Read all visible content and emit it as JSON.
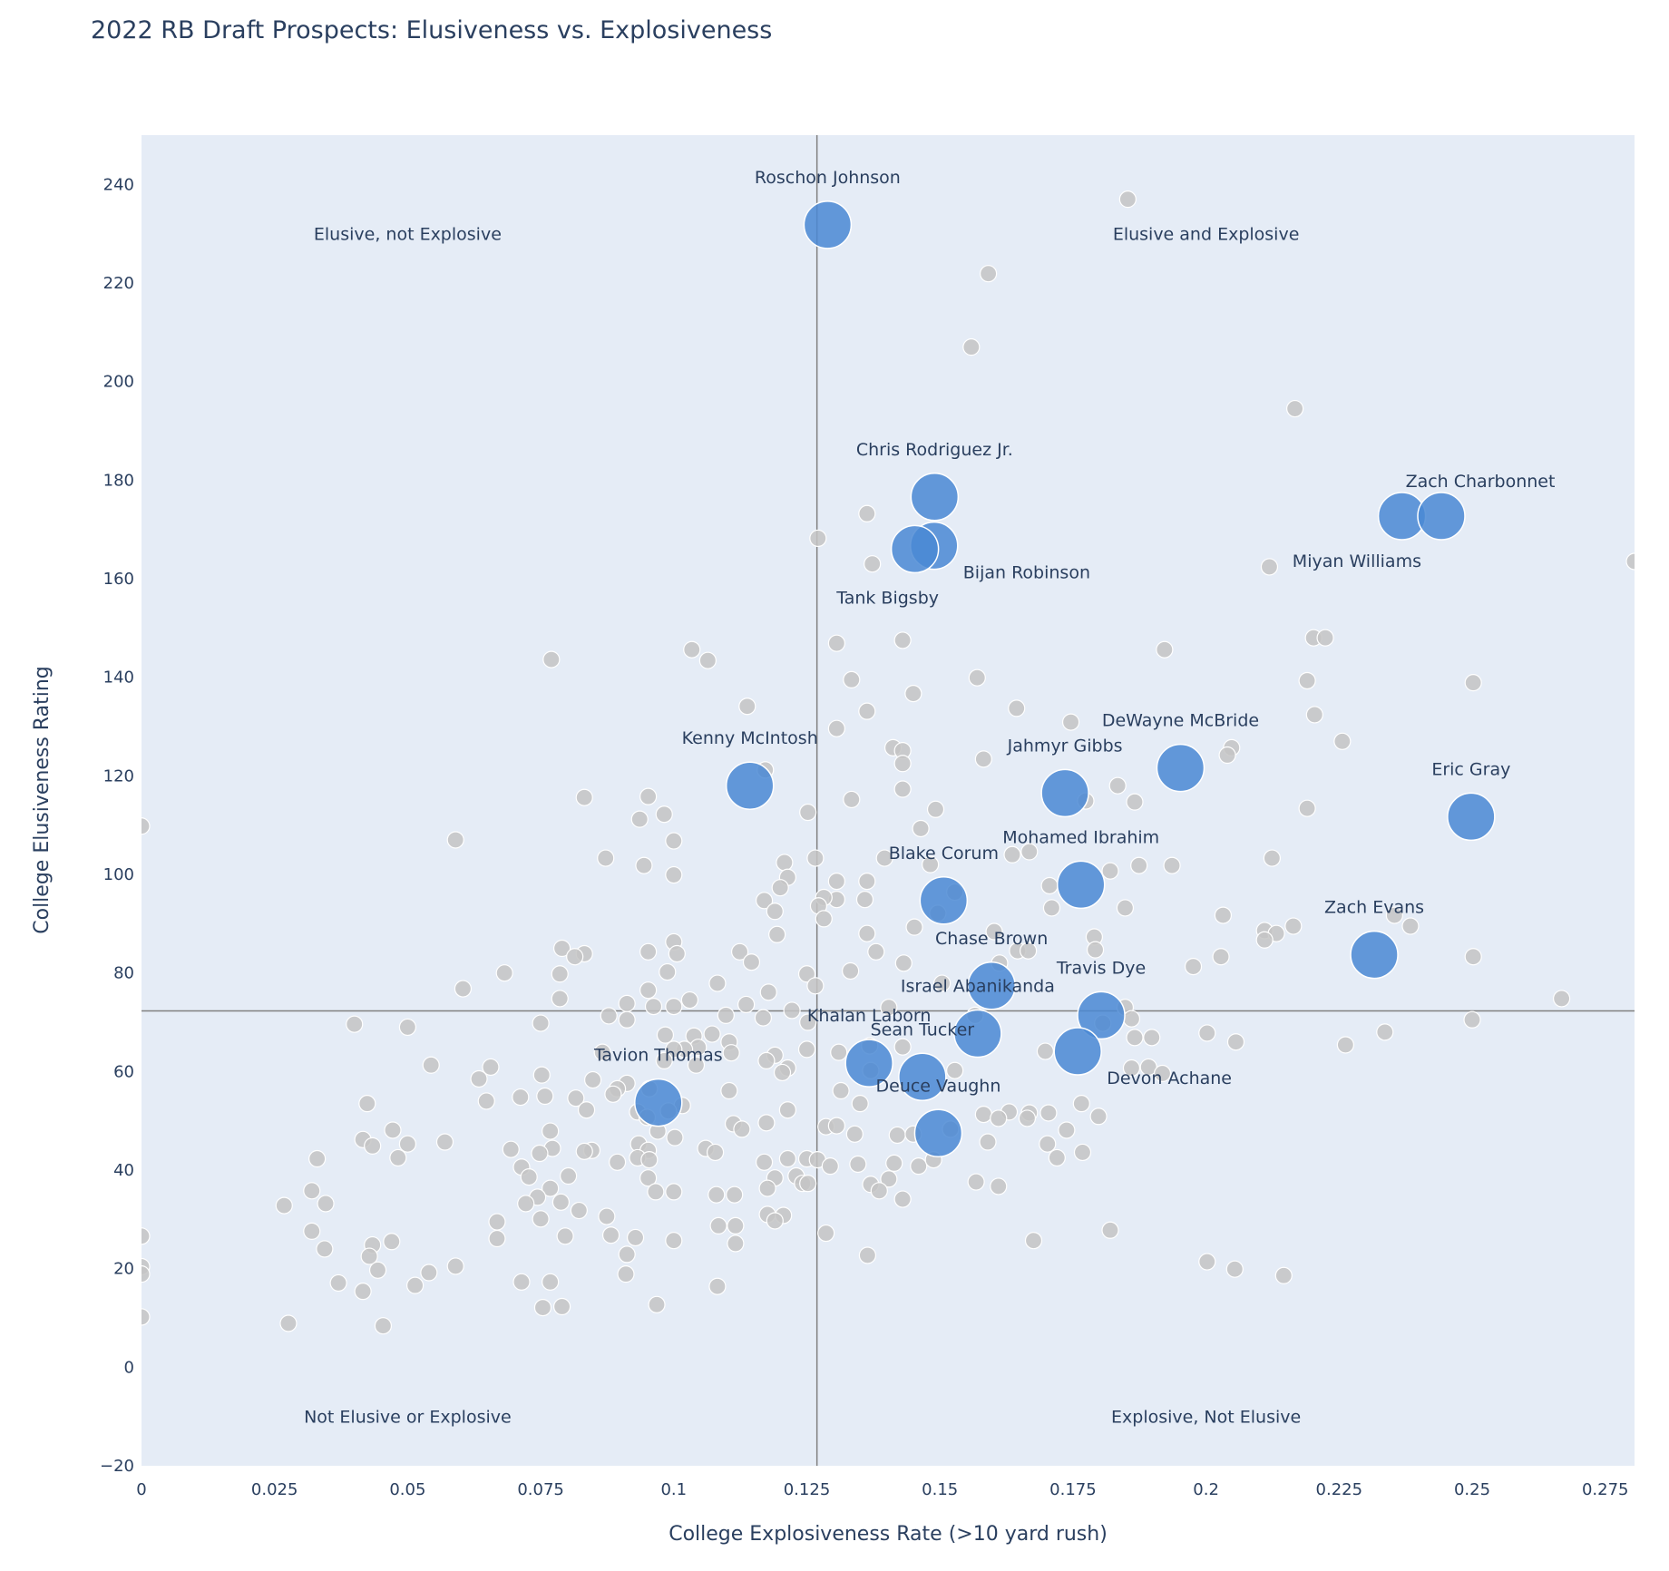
{
  "chart_data": {
    "type": "scatter",
    "title": "2022 RB Draft Prospects: Elusiveness vs. Explosiveness",
    "xlabel": "College Explosiveness Rate (>10 yard rush)",
    "ylabel": "College Elusiveness Rating",
    "xlim": [
      0,
      0.2805
    ],
    "ylim": [
      -20,
      250
    ],
    "grid": false,
    "x_ticks": [
      0,
      0.025,
      0.05,
      0.075,
      0.1,
      0.125,
      0.15,
      0.175,
      0.2,
      0.225,
      0.25,
      0.275
    ],
    "x_tick_labels": [
      "0",
      "0.025",
      "0.05",
      "0.075",
      "0.1",
      "0.125",
      "0.15",
      "0.175",
      "0.2",
      "0.225",
      "0.25",
      "0.275"
    ],
    "y_ticks": [
      -20,
      0,
      20,
      40,
      60,
      80,
      100,
      120,
      140,
      160,
      180,
      200,
      220,
      240
    ],
    "y_tick_labels": [
      "−20",
      "0",
      "20",
      "40",
      "60",
      "80",
      "100",
      "120",
      "140",
      "160",
      "180",
      "200",
      "220",
      "240"
    ],
    "reference_lines": {
      "x": 0.1269,
      "y": 72.3
    },
    "quadrant_labels": [
      {
        "text": "Elusive, not Explosive",
        "x": 0.05,
        "y": 230
      },
      {
        "text": "Elusive and Explosive",
        "x": 0.2,
        "y": 230
      },
      {
        "text": "Not Elusive or Explosive",
        "x": 0.05,
        "y": -10
      },
      {
        "text": "Explosive, Not Elusive",
        "x": 0.2,
        "y": -10
      }
    ],
    "colors": {
      "highlight": "#4a88d4",
      "other": "#c4c4c4",
      "plot_bg": "#e5ecf6",
      "ref_line": "#808080"
    },
    "highlighted": [
      {
        "name": "Roschon Johnson",
        "x": 0.1289,
        "y": 231.8,
        "label_pos": "top center"
      },
      {
        "name": "Chris Rodriguez Jr.",
        "x": 0.149,
        "y": 176.6,
        "label_pos": "top center"
      },
      {
        "name": "Bijan Robinson",
        "x": 0.1489,
        "y": 166.7,
        "label_pos": "bottom right"
      },
      {
        "name": "Tank Bigsby",
        "x": 0.1453,
        "y": 166.0,
        "label_pos": "bottom center"
      },
      {
        "name": "Zach Charbonnet",
        "x": 0.2368,
        "y": 172.7,
        "label_pos": "top right"
      },
      {
        "name": "Miyan Williams",
        "x": 0.2442,
        "y": 172.7,
        "label_pos": "bottom left"
      },
      {
        "name": "Kenny McIntosh",
        "x": 0.1143,
        "y": 118.0,
        "label_pos": "top center"
      },
      {
        "name": "DeWayne McBride",
        "x": 0.1952,
        "y": 121.6,
        "label_pos": "top center"
      },
      {
        "name": "Jahmyr Gibbs",
        "x": 0.1735,
        "y": 116.5,
        "label_pos": "top center"
      },
      {
        "name": "Eric Gray",
        "x": 0.2498,
        "y": 111.7,
        "label_pos": "top center"
      },
      {
        "name": "Mohamed Ibrahim",
        "x": 0.1765,
        "y": 97.9,
        "label_pos": "top center"
      },
      {
        "name": "Blake Corum",
        "x": 0.1507,
        "y": 94.7,
        "label_pos": "top center"
      },
      {
        "name": "Zach Evans",
        "x": 0.2316,
        "y": 83.7,
        "label_pos": "top center"
      },
      {
        "name": "Chase Brown",
        "x": 0.1597,
        "y": 77.4,
        "label_pos": "top center"
      },
      {
        "name": "Travis Dye",
        "x": 0.1803,
        "y": 71.4,
        "label_pos": "top center"
      },
      {
        "name": "Israel Abanikanda",
        "x": 0.1571,
        "y": 67.7,
        "label_pos": "top center"
      },
      {
        "name": "Devon Achane",
        "x": 0.1759,
        "y": 64.1,
        "label_pos": "bottom right"
      },
      {
        "name": "Khalan Laborn",
        "x": 0.1367,
        "y": 61.7,
        "label_pos": "top center"
      },
      {
        "name": "Sean Tucker",
        "x": 0.1467,
        "y": 58.9,
        "label_pos": "top center"
      },
      {
        "name": "Tavion Thomas",
        "x": 0.0971,
        "y": 53.7,
        "label_pos": "top center"
      },
      {
        "name": "Deuce Vaughn",
        "x": 0.1497,
        "y": 47.5,
        "label_pos": "top center"
      }
    ],
    "others": [
      [
        0.1853,
        237.0
      ],
      [
        0.1591,
        221.9
      ],
      [
        0.1559,
        207.0
      ],
      [
        0.2167,
        194.5
      ],
      [
        0.1271,
        168.2
      ],
      [
        0.1363,
        173.2
      ],
      [
        0.1373,
        163.0
      ],
      [
        0.2119,
        162.4
      ],
      [
        0.2805,
        163.5
      ],
      [
        0.1034,
        145.6
      ],
      [
        0.1064,
        143.4
      ],
      [
        0.077,
        143.6
      ],
      [
        0.1306,
        146.9
      ],
      [
        0.143,
        147.5
      ],
      [
        0.1922,
        145.6
      ],
      [
        0.2202,
        148.0
      ],
      [
        0.2224,
        148.0
      ],
      [
        0.2502,
        138.9
      ],
      [
        0.219,
        139.3
      ],
      [
        0.1334,
        139.5
      ],
      [
        0.157,
        139.9
      ],
      [
        0.145,
        136.7
      ],
      [
        0.1138,
        134.1
      ],
      [
        0.1363,
        133.1
      ],
      [
        0.1644,
        133.7
      ],
      [
        0.2204,
        132.4
      ],
      [
        0.1306,
        129.6
      ],
      [
        0.1746,
        130.9
      ],
      [
        0.2256,
        127.0
      ],
      [
        0.2048,
        125.7
      ],
      [
        0.204,
        124.2
      ],
      [
        0.1412,
        125.7
      ],
      [
        0.143,
        125.1
      ],
      [
        0.143,
        122.5
      ],
      [
        0.1172,
        121.2
      ],
      [
        0.1582,
        123.4
      ],
      [
        0.1834,
        118.0
      ],
      [
        0.1866,
        114.7
      ],
      [
        0.1774,
        114.9
      ],
      [
        0.143,
        117.3
      ],
      [
        0.1334,
        115.2
      ],
      [
        0.1492,
        113.2
      ],
      [
        0.0832,
        115.6
      ],
      [
        0.0952,
        115.8
      ],
      [
        0.1252,
        112.6
      ],
      [
        0.0936,
        111.2
      ],
      [
        0.0982,
        112.2
      ],
      [
        0.219,
        113.4
      ],
      [
        0.0,
        109.8
      ],
      [
        0.1464,
        109.3
      ],
      [
        0.059,
        107.0
      ],
      [
        0.1,
        106.8
      ],
      [
        0.1668,
        104.6
      ],
      [
        0.1636,
        104.0
      ],
      [
        0.1266,
        103.3
      ],
      [
        0.0872,
        103.3
      ],
      [
        0.2124,
        103.3
      ],
      [
        0.1936,
        101.8
      ],
      [
        0.1482,
        102.0
      ],
      [
        0.1396,
        103.3
      ],
      [
        0.1208,
        102.4
      ],
      [
        0.182,
        100.7
      ],
      [
        0.1874,
        101.8
      ],
      [
        0.0944,
        101.8
      ],
      [
        0.1,
        99.9
      ],
      [
        0.1214,
        99.4
      ],
      [
        0.1306,
        98.6
      ],
      [
        0.1363,
        98.6
      ],
      [
        0.12,
        97.3
      ],
      [
        0.1706,
        97.7
      ],
      [
        0.1528,
        96.4
      ],
      [
        0.1359,
        94.9
      ],
      [
        0.1306,
        94.9
      ],
      [
        0.1282,
        95.3
      ],
      [
        0.117,
        94.7
      ],
      [
        0.1272,
        93.6
      ],
      [
        0.171,
        93.2
      ],
      [
        0.1848,
        93.2
      ],
      [
        0.119,
        92.5
      ],
      [
        0.1496,
        92.1
      ],
      [
        0.1282,
        91.0
      ],
      [
        0.2032,
        91.7
      ],
      [
        0.1363,
        88.0
      ],
      [
        0.1452,
        89.3
      ],
      [
        0.1602,
        88.4
      ],
      [
        0.2164,
        89.5
      ],
      [
        0.211,
        88.6
      ],
      [
        0.2384,
        89.5
      ],
      [
        0.2132,
        88.0
      ],
      [
        0.1194,
        87.8
      ],
      [
        0.1,
        86.3
      ],
      [
        0.211,
        86.7
      ],
      [
        0.179,
        87.3
      ],
      [
        0.2354,
        91.7
      ],
      [
        0.138,
        84.3
      ],
      [
        0.0952,
        84.3
      ],
      [
        0.1006,
        83.9
      ],
      [
        0.1124,
        84.3
      ],
      [
        0.0832,
        83.9
      ],
      [
        0.079,
        85.0
      ],
      [
        0.0814,
        83.3
      ],
      [
        0.1646,
        84.5
      ],
      [
        0.1666,
        84.5
      ],
      [
        0.1792,
        84.7
      ],
      [
        0.2028,
        83.3
      ],
      [
        0.2502,
        83.3
      ],
      [
        0.1432,
        82.0
      ],
      [
        0.1146,
        82.2
      ],
      [
        0.1612,
        82.0
      ],
      [
        0.1976,
        81.3
      ],
      [
        0.0988,
        80.2
      ],
      [
        0.1332,
        80.4
      ],
      [
        0.125,
        79.8
      ],
      [
        0.0786,
        79.8
      ],
      [
        0.0682,
        80.0
      ],
      [
        0.1082,
        77.9
      ],
      [
        0.1266,
        77.4
      ],
      [
        0.1178,
        76.1
      ],
      [
        0.0952,
        76.5
      ],
      [
        0.0604,
        76.8
      ],
      [
        0.1504,
        77.9
      ],
      [
        0.0786,
        74.8
      ],
      [
        0.2668,
        74.8
      ],
      [
        0.103,
        74.5
      ],
      [
        0.0912,
        73.8
      ],
      [
        0.0962,
        73.2
      ],
      [
        0.1,
        73.2
      ],
      [
        0.1136,
        73.6
      ],
      [
        0.1404,
        73.0
      ],
      [
        0.1222,
        72.4
      ],
      [
        0.1098,
        71.4
      ],
      [
        0.1566,
        71.4
      ],
      [
        0.1848,
        73.0
      ],
      [
        0.186,
        70.7
      ],
      [
        0.0878,
        71.3
      ],
      [
        0.0912,
        70.5
      ],
      [
        0.1168,
        70.9
      ],
      [
        0.075,
        69.8
      ],
      [
        0.04,
        69.6
      ],
      [
        0.05,
        69.0
      ],
      [
        0.25,
        70.5
      ],
      [
        0.1806,
        69.8
      ],
      [
        0.1866,
        66.9
      ],
      [
        0.1252,
        70.0
      ],
      [
        0.1898,
        66.9
      ],
      [
        0.2002,
        67.8
      ],
      [
        0.2336,
        68.0
      ],
      [
        0.2056,
        66.0
      ],
      [
        0.2262,
        65.4
      ],
      [
        0.0984,
        67.4
      ],
      [
        0.1038,
        67.2
      ],
      [
        0.1072,
        67.6
      ],
      [
        0.1104,
        66.0
      ],
      [
        0.1046,
        64.9
      ],
      [
        0.102,
        64.5
      ],
      [
        0.1,
        64.5
      ],
      [
        0.1368,
        65.2
      ],
      [
        0.143,
        65.0
      ],
      [
        0.1698,
        64.1
      ],
      [
        0.1108,
        63.8
      ],
      [
        0.0866,
        63.9
      ],
      [
        0.131,
        63.9
      ],
      [
        0.119,
        63.3
      ],
      [
        0.125,
        64.5
      ],
      [
        0.0982,
        62.2
      ],
      [
        0.1042,
        61.3
      ],
      [
        0.1174,
        62.2
      ],
      [
        0.1214,
        60.7
      ],
      [
        0.1204,
        59.8
      ],
      [
        0.0544,
        61.3
      ],
      [
        0.0656,
        60.9
      ],
      [
        0.186,
        60.7
      ],
      [
        0.1892,
        60.9
      ],
      [
        0.1918,
        59.6
      ],
      [
        0.1528,
        60.2
      ],
      [
        0.137,
        60.2
      ],
      [
        0.0752,
        59.3
      ],
      [
        0.0634,
        58.5
      ],
      [
        0.0848,
        58.3
      ],
      [
        0.0912,
        57.6
      ],
      [
        0.0894,
        56.5
      ],
      [
        0.0954,
        56.5
      ],
      [
        0.0886,
        55.4
      ],
      [
        0.1104,
        56.1
      ],
      [
        0.1314,
        56.1
      ],
      [
        0.0758,
        55.0
      ],
      [
        0.0712,
        54.8
      ],
      [
        0.0816,
        54.6
      ],
      [
        0.0424,
        53.5
      ],
      [
        0.0648,
        54.0
      ],
      [
        0.1016,
        53.1
      ],
      [
        0.135,
        53.5
      ],
      [
        0.1766,
        53.5
      ],
      [
        0.1582,
        51.3
      ],
      [
        0.163,
        51.8
      ],
      [
        0.161,
        50.5
      ],
      [
        0.1668,
        51.6
      ],
      [
        0.1664,
        50.5
      ],
      [
        0.1704,
        51.6
      ],
      [
        0.1798,
        50.9
      ],
      [
        0.0836,
        52.2
      ],
      [
        0.1214,
        52.2
      ],
      [
        0.0932,
        51.8
      ],
      [
        0.095,
        50.7
      ],
      [
        0.099,
        52.0
      ],
      [
        0.097,
        47.9
      ],
      [
        0.1174,
        49.6
      ],
      [
        0.1112,
        49.4
      ],
      [
        0.1128,
        48.3
      ],
      [
        0.1286,
        48.8
      ],
      [
        0.1306,
        49.0
      ],
      [
        0.134,
        47.3
      ],
      [
        0.142,
        47.1
      ],
      [
        0.145,
        47.3
      ],
      [
        0.152,
        48.3
      ],
      [
        0.1738,
        48.1
      ],
      [
        0.159,
        45.7
      ],
      [
        0.1702,
        45.3
      ],
      [
        0.172,
        42.5
      ],
      [
        0.1768,
        43.6
      ],
      [
        0.0472,
        48.1
      ],
      [
        0.0416,
        46.2
      ],
      [
        0.0434,
        44.9
      ],
      [
        0.05,
        45.3
      ],
      [
        0.0482,
        42.5
      ],
      [
        0.057,
        45.7
      ],
      [
        0.0768,
        47.9
      ],
      [
        0.0772,
        44.4
      ],
      [
        0.0748,
        43.4
      ],
      [
        0.0694,
        44.2
      ],
      [
        0.0846,
        44.0
      ],
      [
        0.0832,
        43.8
      ],
      [
        0.0934,
        45.3
      ],
      [
        0.0952,
        44.0
      ],
      [
        0.1002,
        46.6
      ],
      [
        0.106,
        44.4
      ],
      [
        0.1078,
        43.6
      ],
      [
        0.033,
        42.3
      ],
      [
        0.0932,
        42.5
      ],
      [
        0.0894,
        41.6
      ],
      [
        0.0954,
        42.1
      ],
      [
        0.117,
        41.6
      ],
      [
        0.1214,
        42.3
      ],
      [
        0.125,
        42.3
      ],
      [
        0.127,
        42.1
      ],
      [
        0.1294,
        40.8
      ],
      [
        0.1346,
        41.2
      ],
      [
        0.1414,
        41.4
      ],
      [
        0.146,
        40.8
      ],
      [
        0.1488,
        42.1
      ],
      [
        0.0714,
        40.6
      ],
      [
        0.0728,
        38.6
      ],
      [
        0.0802,
        38.8
      ],
      [
        0.0952,
        38.4
      ],
      [
        0.119,
        38.4
      ],
      [
        0.123,
        38.8
      ],
      [
        0.1242,
        37.3
      ],
      [
        0.1252,
        37.3
      ],
      [
        0.1404,
        38.2
      ],
      [
        0.137,
        37.1
      ],
      [
        0.1568,
        37.6
      ],
      [
        0.161,
        36.7
      ],
      [
        0.0966,
        35.6
      ],
      [
        0.1,
        35.6
      ],
      [
        0.0768,
        36.3
      ],
      [
        0.1176,
        36.3
      ],
      [
        0.1386,
        35.8
      ],
      [
        0.032,
        35.8
      ],
      [
        0.0346,
        33.2
      ],
      [
        0.0744,
        34.5
      ],
      [
        0.0722,
        33.2
      ],
      [
        0.0788,
        33.5
      ],
      [
        0.108,
        35.0
      ],
      [
        0.1114,
        35.0
      ],
      [
        0.143,
        34.1
      ],
      [
        0.0268,
        32.8
      ],
      [
        0.0822,
        31.8
      ],
      [
        0.1176,
        31.0
      ],
      [
        0.1206,
        30.8
      ],
      [
        0.119,
        29.7
      ],
      [
        0.075,
        30.1
      ],
      [
        0.0874,
        30.6
      ],
      [
        0.0668,
        29.5
      ],
      [
        0.1084,
        28.7
      ],
      [
        0.1116,
        28.7
      ],
      [
        0.182,
        27.8
      ],
      [
        0.032,
        27.6
      ],
      [
        0.1286,
        27.2
      ],
      [
        0.0668,
        26.1
      ],
      [
        0.0796,
        26.6
      ],
      [
        0.0882,
        26.8
      ],
      [
        0.0928,
        26.3
      ],
      [
        0.1,
        25.7
      ],
      [
        0.1116,
        25.1
      ],
      [
        0.0434,
        24.8
      ],
      [
        0.047,
        25.5
      ],
      [
        0.0,
        26.6
      ],
      [
        0.0344,
        24.0
      ],
      [
        0.0428,
        22.5
      ],
      [
        0.0912,
        22.9
      ],
      [
        0.1364,
        22.7
      ],
      [
        0.1676,
        25.7
      ],
      [
        0.2002,
        21.4
      ],
      [
        0.2054,
        19.9
      ],
      [
        0.2146,
        18.6
      ],
      [
        0.0,
        20.4
      ],
      [
        0.0,
        18.9
      ],
      [
        0.0444,
        19.7
      ],
      [
        0.054,
        19.2
      ],
      [
        0.059,
        20.5
      ],
      [
        0.091,
        18.9
      ],
      [
        0.037,
        17.1
      ],
      [
        0.0514,
        16.6
      ],
      [
        0.0714,
        17.3
      ],
      [
        0.0768,
        17.3
      ],
      [
        0.1082,
        16.4
      ],
      [
        0.0416,
        15.4
      ],
      [
        0.0754,
        12.1
      ],
      [
        0.079,
        12.3
      ],
      [
        0.0968,
        12.7
      ],
      [
        0.0,
        10.2
      ],
      [
        0.0276,
        8.9
      ],
      [
        0.0454,
        8.4
      ]
    ]
  }
}
